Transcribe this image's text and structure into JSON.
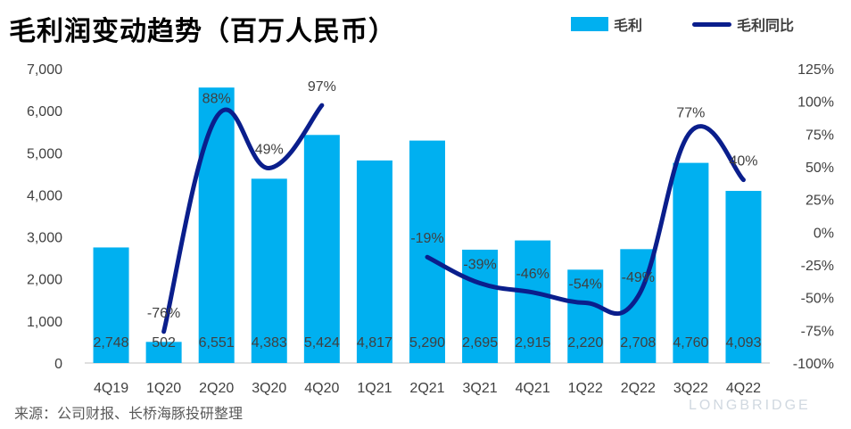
{
  "chart_data": {
    "type": "bar",
    "title": "毛利润变动趋势（百万人民币）",
    "source": "来源：公司财报、长桥海豚投研整理",
    "watermark": "LONGBRIDGE",
    "categories": [
      "4Q19",
      "1Q20",
      "2Q20",
      "3Q20",
      "4Q20",
      "1Q21",
      "2Q21",
      "3Q21",
      "4Q21",
      "1Q22",
      "2Q22",
      "3Q22",
      "4Q22"
    ],
    "series": [
      {
        "name": "毛利",
        "type": "bar",
        "axis": "left",
        "values": [
          2748,
          502,
          6551,
          4383,
          5424,
          4817,
          5290,
          2695,
          2915,
          2220,
          2708,
          4760,
          4093
        ],
        "labels": [
          "2,748",
          "502",
          "6,551",
          "4,383",
          "5,424",
          "4,817",
          "5,290",
          "2,695",
          "2,915",
          "2,220",
          "2,708",
          "4,760",
          "4,093"
        ]
      },
      {
        "name": "毛利同比",
        "type": "line",
        "axis": "right",
        "segments": [
          {
            "x": [
              "1Q20",
              "2Q20",
              "3Q20",
              "4Q20"
            ],
            "values": [
              -76,
              88,
              49,
              97
            ],
            "labels": [
              "-76%",
              "88%",
              "49%",
              "97%"
            ]
          },
          {
            "x": [
              "2Q21",
              "3Q21",
              "4Q21",
              "1Q22",
              "2Q22",
              "3Q22",
              "4Q22"
            ],
            "values": [
              -19,
              -39,
              -46,
              -54,
              -49,
              77,
              40
            ],
            "labels": [
              "-19%",
              "-39%",
              "-46%",
              "-54%",
              "-49%",
              "77%",
              "40%"
            ]
          }
        ]
      }
    ],
    "y_left": {
      "min": 0,
      "max": 7000,
      "ticks": [
        0,
        1000,
        2000,
        3000,
        4000,
        5000,
        6000,
        7000
      ],
      "tick_labels": [
        "0",
        "1,000",
        "2,000",
        "3,000",
        "4,000",
        "5,000",
        "6,000",
        "7,000"
      ]
    },
    "y_right": {
      "min": -100,
      "max": 125,
      "ticks": [
        -100,
        -75,
        -50,
        -25,
        0,
        25,
        50,
        75,
        100,
        125
      ],
      "tick_labels": [
        "-100%",
        "-75%",
        "-50%",
        "-25%",
        "0%",
        "25%",
        "50%",
        "75%",
        "100%",
        "125%"
      ]
    },
    "grid": false,
    "legend_position": "top-right",
    "colors": {
      "bar": "#00B0F0",
      "line": "#0A1E8C"
    }
  }
}
